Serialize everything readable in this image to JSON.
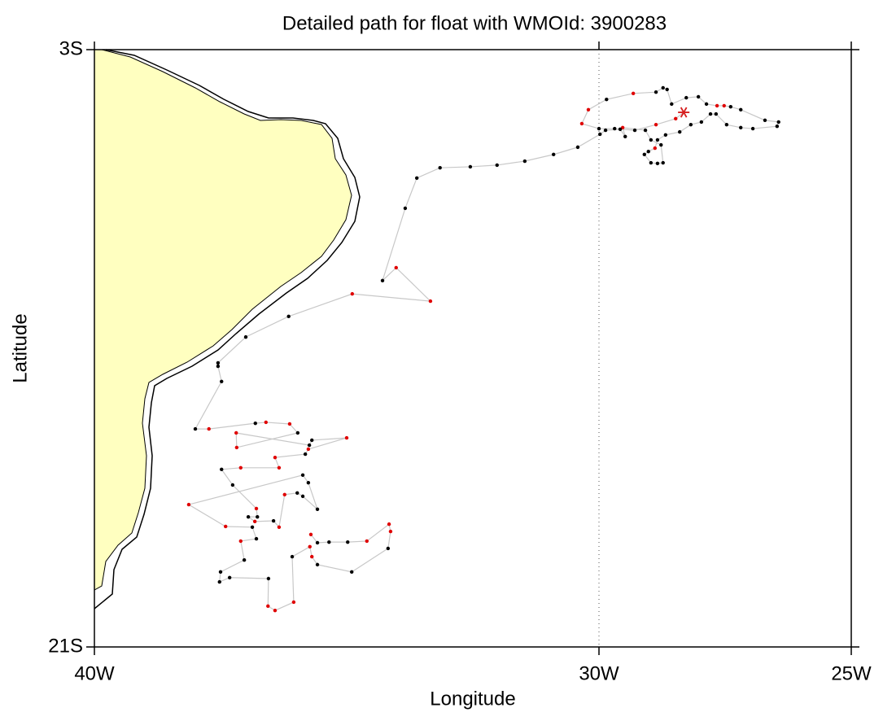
{
  "chart_data": {
    "type": "line",
    "title": "Detailed path for float with WMOId: 3900283",
    "x_label": "Longitude",
    "y_label": "Latitude",
    "xlim": [
      -40,
      -25
    ],
    "ylim": [
      -21,
      -3
    ],
    "xticks": [
      {
        "value": -40,
        "label": "40W"
      },
      {
        "value": -30,
        "label": "30W"
      },
      {
        "value": -25,
        "label": "25W"
      }
    ],
    "yticks": [
      {
        "value": -21,
        "label": "21S"
      },
      {
        "value": -3,
        "label": "3S"
      }
    ],
    "grid": true,
    "series": [
      {
        "color": "#c8c8c8",
        "x": [
          -28.32,
          -28.48,
          -28.87,
          -29.29,
          -29.69,
          -30.0,
          -30.34,
          -30.21,
          -29.85,
          -29.32,
          -28.87,
          -28.73,
          -28.65,
          -28.56,
          -28.27,
          -28.03,
          -27.87,
          -27.66,
          -27.52,
          -27.39,
          -27.19,
          -26.71,
          -26.44,
          -26.47,
          -26.95,
          -27.19,
          -27.47,
          -27.68,
          -27.79,
          -27.97,
          -28.18,
          -28.4,
          -28.68,
          -28.84,
          -28.89,
          -29.02,
          -29.1,
          -28.97,
          -28.84,
          -28.73,
          -28.77,
          -28.97,
          -29.08,
          -29.53,
          -29.48,
          -29.58,
          -29.87,
          -29.98,
          -30.42,
          -30.9,
          -31.47,
          -32.02,
          -32.55,
          -33.15,
          -33.61,
          -33.84,
          -34.29,
          -34.02,
          -33.34,
          -34.89,
          -36.15,
          -37.0,
          -37.55,
          -37.55,
          -37.48,
          -38.0,
          -37.73,
          -36.81,
          -36.6,
          -36.13,
          -35.97,
          -37.18,
          -37.19,
          -35.74,
          -35.69,
          -35.0,
          -35.76,
          -35.82,
          -36.42,
          -36.34,
          -37.1,
          -37.48,
          -37.26,
          -36.79,
          -36.77,
          -36.95,
          -36.82,
          -36.45,
          -36.34,
          -36.23,
          -35.98,
          -35.87,
          -35.58,
          -35.76,
          -35.87,
          -38.13,
          -37.4,
          -36.87,
          -36.79,
          -37.1,
          -37.03,
          -37.5,
          -37.52,
          -37.32,
          -36.55,
          -36.56,
          -36.42,
          -36.05,
          -36.08,
          -35.73,
          -35.69,
          -35.58,
          -34.9,
          -34.18,
          -34.13,
          -34.16,
          -34.6,
          -34.98,
          -35.35,
          -35.58,
          -35.71
        ],
        "values": [
          -4.89,
          -5.08,
          -5.26,
          -5.43,
          -5.38,
          -5.38,
          -5.23,
          -4.81,
          -4.5,
          -4.32,
          -4.28,
          -4.15,
          -4.2,
          -4.64,
          -4.45,
          -4.42,
          -4.64,
          -4.69,
          -4.69,
          -4.72,
          -4.81,
          -5.13,
          -5.18,
          -5.31,
          -5.38,
          -5.35,
          -5.26,
          -4.94,
          -4.94,
          -5.18,
          -5.26,
          -5.48,
          -5.57,
          -5.72,
          -5.97,
          -6.07,
          -6.16,
          -6.41,
          -6.43,
          -6.41,
          -5.87,
          -5.72,
          -5.43,
          -5.35,
          -5.62,
          -5.4,
          -5.43,
          -5.55,
          -5.94,
          -6.16,
          -6.36,
          -6.48,
          -6.53,
          -6.56,
          -6.87,
          -7.78,
          -9.96,
          -9.57,
          -10.58,
          -10.36,
          -11.04,
          -11.66,
          -12.44,
          -12.54,
          -13.0,
          -14.43,
          -14.43,
          -14.26,
          -14.23,
          -14.28,
          -14.55,
          -14.99,
          -14.55,
          -14.92,
          -14.77,
          -14.7,
          -15.04,
          -15.19,
          -15.29,
          -15.6,
          -15.6,
          -15.65,
          -16.12,
          -16.83,
          -17.08,
          -17.08,
          -17.22,
          -17.2,
          -17.39,
          -16.41,
          -16.36,
          -16.46,
          -16.85,
          -16.05,
          -15.82,
          -16.71,
          -17.37,
          -17.39,
          -17.74,
          -17.81,
          -18.38,
          -18.74,
          -19.04,
          -18.91,
          -18.94,
          -19.77,
          -19.9,
          -19.65,
          -18.28,
          -17.98,
          -18.28,
          -18.52,
          -18.74,
          -18.03,
          -17.52,
          -17.3,
          -17.81,
          -17.84,
          -17.84,
          -17.86,
          -17.61
        ],
        "marker_colors": [
          "#d62020",
          "#e00000",
          "#e00000",
          "#000000",
          "#000000",
          "#000000",
          "#e00000",
          "#e00000",
          "#000000",
          "#e00000",
          "#000000",
          "#000000",
          "#000000",
          "#000000",
          "#000000",
          "#000000",
          "#000000",
          "#e00000",
          "#e00000",
          "#000000",
          "#000000",
          "#000000",
          "#000000",
          "#000000",
          "#000000",
          "#000000",
          "#000000",
          "#000000",
          "#000000",
          "#000000",
          "#000000",
          "#000000",
          "#000000",
          "#000000",
          "#e00000",
          "#000000",
          "#000000",
          "#000000",
          "#000000",
          "#000000",
          "#000000",
          "#000000",
          "#000000",
          "#e00000",
          "#000000",
          "#000000",
          "#000000",
          "#000000",
          "#000000",
          "#000000",
          "#000000",
          "#000000",
          "#000000",
          "#000000",
          "#000000",
          "#000000",
          "#000000",
          "#e00000",
          "#e00000",
          "#e00000",
          "#000000",
          "#000000",
          "#000000",
          "#000000",
          "#000000",
          "#000000",
          "#e00000",
          "#000000",
          "#e00000",
          "#e00000",
          "#000000",
          "#e00000",
          "#e00000",
          "#000000",
          "#000000",
          "#e00000",
          "#e00000",
          "#000000",
          "#e00000",
          "#e00000",
          "#e00000",
          "#000000",
          "#000000",
          "#e00000",
          "#000000",
          "#000000",
          "#e00000",
          "#000000",
          "#e00000",
          "#e00000",
          "#000000",
          "#000000",
          "#000000",
          "#000000",
          "#000000",
          "#e00000",
          "#e00000",
          "#000000",
          "#000000",
          "#e00000",
          "#000000",
          "#000000",
          "#000000",
          "#000000",
          "#000000",
          "#e00000",
          "#e00000",
          "#e00000",
          "#000000",
          "#e00000",
          "#e00000",
          "#000000",
          "#000000",
          "#000000",
          "#e00000",
          "#e00000",
          "#e00000",
          "#000000",
          "#000000",
          "#000000",
          "#e00000"
        ]
      }
    ]
  }
}
